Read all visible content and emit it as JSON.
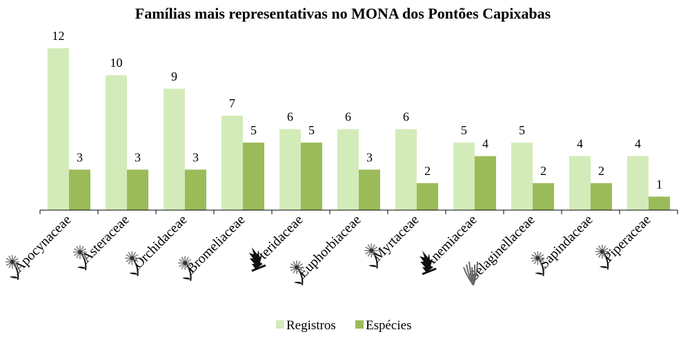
{
  "chart_data": {
    "type": "bar",
    "title": "Famílias mais representativas no MONA dos Pontões Capixabas",
    "categories": [
      "Apocynaceae",
      "Asteraceae",
      "Orchidaceae",
      "Bromeliaceae",
      "Pteridaceae",
      "Euphorbiaceae",
      "Myrtaceae",
      "Anemiaceae",
      "Selaginellaceae",
      "Sapindaceae",
      "Piperaceae"
    ],
    "category_icons": [
      "flower-icon",
      "flower-icon",
      "flower-icon",
      "flower-icon",
      "fern-icon",
      "flower-icon",
      "flower-icon",
      "fern-icon",
      "selaginella-icon",
      "flower-icon",
      "flower-icon"
    ],
    "series": [
      {
        "name": "Registros",
        "color": "#d3ebb9",
        "values": [
          12,
          10,
          9,
          7,
          6,
          6,
          6,
          5,
          5,
          4,
          4
        ]
      },
      {
        "name": "Espécies",
        "color": "#9bbb59",
        "values": [
          3,
          3,
          3,
          5,
          5,
          3,
          2,
          4,
          2,
          2,
          1
        ]
      }
    ],
    "ylim": [
      0,
      12
    ],
    "grid": false,
    "legend": "bottom",
    "data_labels": true
  }
}
